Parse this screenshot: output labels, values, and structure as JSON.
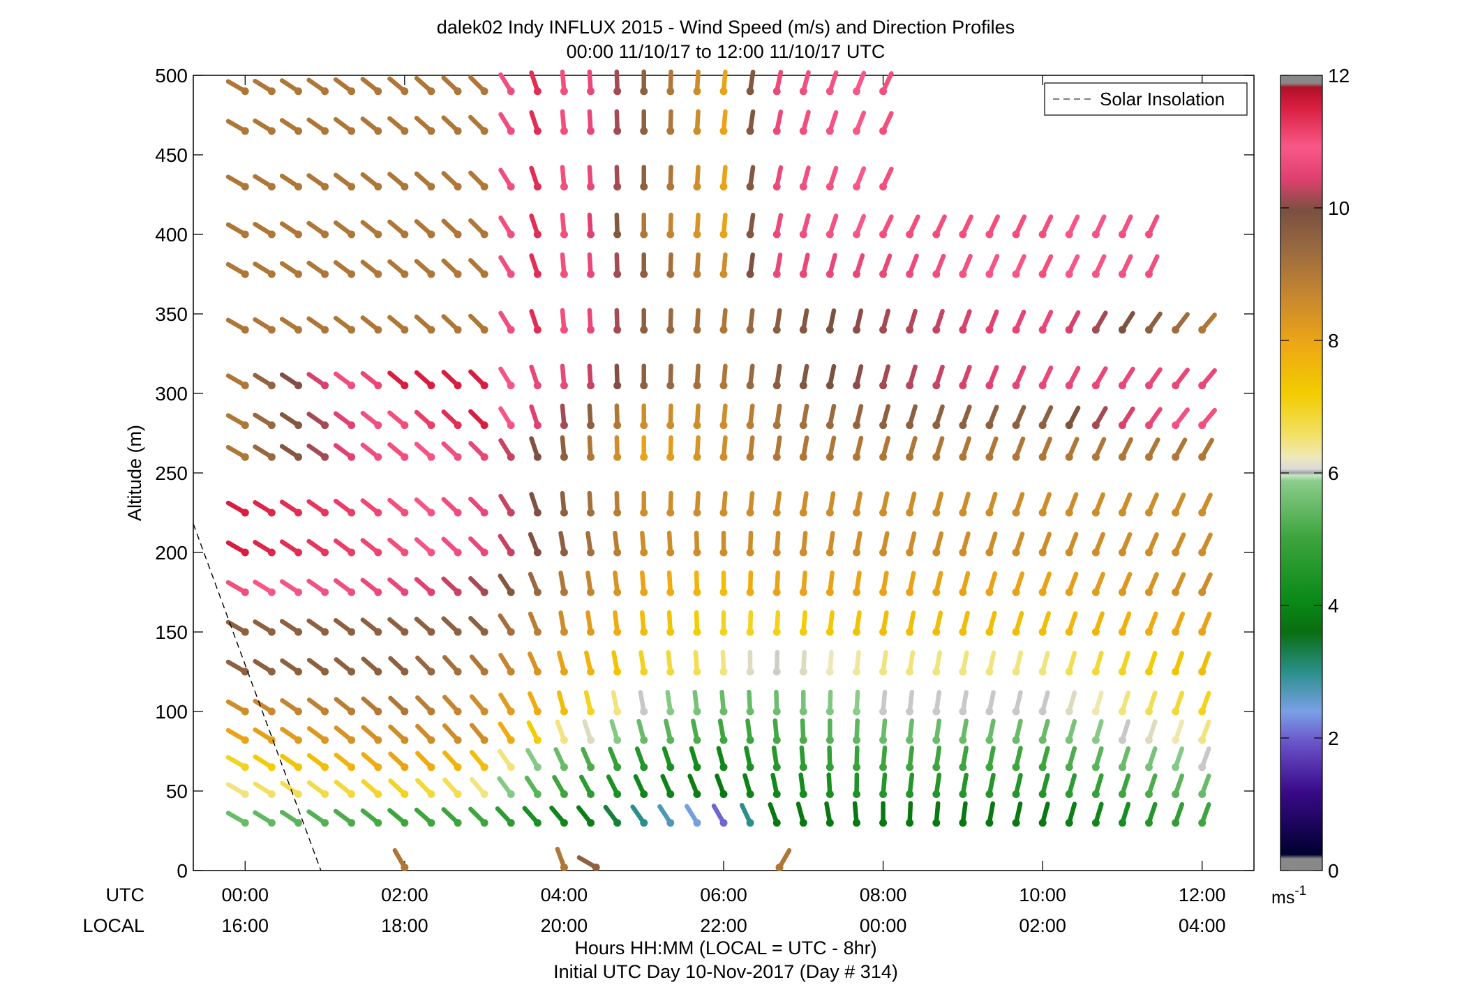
{
  "chart_data": {
    "type": "wind-barb-profile",
    "title": "dalek02 Indy INFLUX 2015 - Wind Speed (m/s) and Direction Profiles",
    "subtitle": "00:00 11/10/17 to 12:00 11/10/17  UTC",
    "ylabel": "Altitude (m)",
    "xlabel": "Hours HH:MM  (LOCAL = UTC - 8hr)",
    "xlabel2": "Initial UTC Day 10-Nov-2017 (Day # 314)",
    "utc_label": "UTC",
    "local_label": "LOCAL",
    "xlim_hours": [
      -0.65,
      12.65
    ],
    "ylim": [
      0,
      500
    ],
    "y_ticks": [
      0,
      50,
      100,
      150,
      200,
      250,
      300,
      350,
      400,
      450,
      500
    ],
    "x_ticks_hours": [
      0,
      2,
      4,
      6,
      8,
      10,
      12
    ],
    "utc_tick_labels": [
      "00:00",
      "02:00",
      "04:00",
      "06:00",
      "08:00",
      "10:00",
      "12:00"
    ],
    "local_tick_labels": [
      "16:00",
      "18:00",
      "20:00",
      "22:00",
      "00:00",
      "02:00",
      "04:00"
    ],
    "legend": {
      "label": "Solar Insolation",
      "placement": "top-right"
    },
    "colorbar": {
      "label": "ms-1",
      "ticks": [
        0,
        2,
        4,
        6,
        8,
        10,
        12
      ],
      "range": [
        0,
        12
      ]
    },
    "solar_insolation_line": [
      [
        -0.65,
        218
      ],
      [
        0.95,
        0
      ]
    ],
    "times_hours": [
      0,
      0.333,
      0.667,
      1,
      1.333,
      1.667,
      2,
      2.333,
      2.667,
      3,
      3.333,
      3.667,
      4,
      4.333,
      4.667,
      5,
      5.333,
      5.667,
      6,
      6.333,
      6.667,
      7,
      7.333,
      7.667,
      8,
      8.333,
      8.667,
      9,
      9.333,
      9.667,
      10,
      10.333,
      10.667,
      11,
      11.333,
      11.667,
      12
    ],
    "levels_m": [
      30,
      48,
      65,
      82,
      100,
      125,
      150,
      175,
      200,
      225,
      260,
      280,
      305,
      340,
      375,
      400,
      430,
      465,
      490
    ],
    "speed_profile": [
      {
        "t": 0,
        "speeds": [
          5.5,
          6.5,
          7,
          8,
          8.5,
          9.5,
          9.5,
          11,
          11.5,
          11.5,
          9,
          9,
          9,
          9,
          9,
          9,
          9,
          9,
          9
        ]
      },
      {
        "t": 2,
        "speeds": [
          5,
          7,
          8,
          8.5,
          9,
          9.5,
          9.5,
          10.5,
          11,
          11,
          11,
          11,
          11.5,
          9,
          9,
          9,
          9,
          9,
          9
        ]
      },
      {
        "t": 3,
        "speeds": [
          5,
          6.5,
          7.5,
          8.5,
          8.5,
          9,
          9.5,
          10,
          10.5,
          10.5,
          10.5,
          11.5,
          11.5,
          9,
          9,
          9,
          9,
          9,
          9
        ]
      },
      {
        "t": 3.5,
        "speeds": [
          4.5,
          5.5,
          6,
          7.5,
          8,
          8.5,
          9,
          9.5,
          10,
          10,
          10,
          10.5,
          10.5,
          11.5,
          11.5,
          11.5,
          11.5,
          11.5,
          11.5
        ]
      },
      {
        "t": 4,
        "speeds": [
          4,
          5,
          5.5,
          6.5,
          7.5,
          8,
          8.5,
          9,
          9.5,
          9.5,
          9.5,
          10,
          10.5,
          11,
          11,
          11,
          11,
          11,
          11
        ]
      },
      {
        "t": 5,
        "speeds": [
          3,
          4,
          4.5,
          5.5,
          6,
          7,
          7.5,
          8,
          8.5,
          8.5,
          8,
          8.5,
          9.5,
          9.5,
          9.5,
          9,
          9.5,
          9.5,
          9.5
        ]
      },
      {
        "t": 6,
        "speeds": [
          2,
          3.5,
          4,
          5,
          5.5,
          6.5,
          7,
          7.5,
          8.5,
          8.5,
          8.5,
          8.5,
          9,
          9,
          8.5,
          8,
          8,
          8,
          8
        ]
      },
      {
        "t": 6.5,
        "speeds": [
          3.5,
          4,
          4.5,
          5,
          5.5,
          6,
          7,
          8,
          8.5,
          8.5,
          9,
          9,
          9.5,
          9.5,
          10.5,
          10.5,
          10.5,
          10.5,
          10.5
        ]
      },
      {
        "t": 8,
        "speeds": [
          3.5,
          4.5,
          5,
          5.5,
          6,
          6.5,
          7.5,
          8,
          8.5,
          8.5,
          9,
          9.5,
          10,
          10,
          10.5,
          11,
          11,
          11,
          11
        ]
      },
      {
        "t": 10,
        "speeds": [
          3.5,
          4.5,
          5,
          5.5,
          6,
          6.5,
          7.5,
          8,
          8.5,
          8.5,
          9,
          9.5,
          10.5,
          10.5,
          11,
          11,
          9,
          9,
          9
        ]
      },
      {
        "t": 12,
        "speeds": [
          5,
          5.5,
          6,
          6.5,
          7,
          7.5,
          8,
          8.5,
          8.5,
          8.5,
          9,
          11,
          10.5,
          9,
          10.5,
          10.5,
          10.5,
          9,
          9
        ]
      }
    ],
    "direction_deg_profile": [
      {
        "t": 0,
        "dirs": [
          300,
          300,
          300,
          300,
          300,
          300,
          300,
          300,
          300,
          300,
          300,
          300,
          300,
          300,
          300,
          300,
          300,
          300,
          300
        ]
      },
      {
        "t": 3,
        "dirs": [
          315,
          320,
          320,
          320,
          320,
          320,
          315,
          315,
          315,
          315,
          315,
          315,
          315,
          315,
          315,
          315,
          315,
          315,
          315
        ]
      },
      {
        "t": 4,
        "dirs": [
          320,
          330,
          335,
          340,
          345,
          345,
          350,
          350,
          350,
          355,
          355,
          355,
          355,
          355,
          355,
          355,
          355,
          355,
          355
        ]
      },
      {
        "t": 6,
        "dirs": [
          330,
          340,
          345,
          350,
          355,
          358,
          0,
          0,
          0,
          5,
          5,
          5,
          5,
          5,
          5,
          5,
          5,
          5,
          5
        ]
      },
      {
        "t": 8,
        "dirs": [
          0,
          5,
          5,
          5,
          5,
          8,
          10,
          10,
          12,
          12,
          15,
          15,
          15,
          15,
          20,
          25,
          25,
          25,
          25
        ]
      },
      {
        "t": 10,
        "dirs": [
          15,
          15,
          15,
          15,
          15,
          15,
          18,
          20,
          20,
          20,
          22,
          25,
          25,
          25,
          25,
          25,
          25,
          25,
          25
        ]
      },
      {
        "t": 12,
        "dirs": [
          20,
          20,
          20,
          20,
          20,
          20,
          22,
          25,
          25,
          25,
          30,
          40,
          40,
          40,
          25,
          25,
          30,
          40,
          40
        ]
      }
    ],
    "missing_regions": [
      {
        "t_from": 8.3,
        "t_to": 11.7,
        "levels_from_m": 430,
        "levels_to_m": 490
      },
      {
        "t_from": 11.4,
        "t_to": 12.1,
        "levels_from_m": 375,
        "levels_to_m": 490
      },
      {
        "t_from": 12.1,
        "t_to": 12.2,
        "levels_from_m": 260,
        "levels_to_m": 260
      }
    ],
    "surface_barbs": [
      {
        "t": 2,
        "speed": 9,
        "dir": 330
      },
      {
        "t": 4,
        "speed": 9,
        "dir": 340
      },
      {
        "t": 4.4,
        "speed": 9.5,
        "dir": 300
      },
      {
        "t": 6.7,
        "speed": 9,
        "dir": 30
      }
    ]
  }
}
